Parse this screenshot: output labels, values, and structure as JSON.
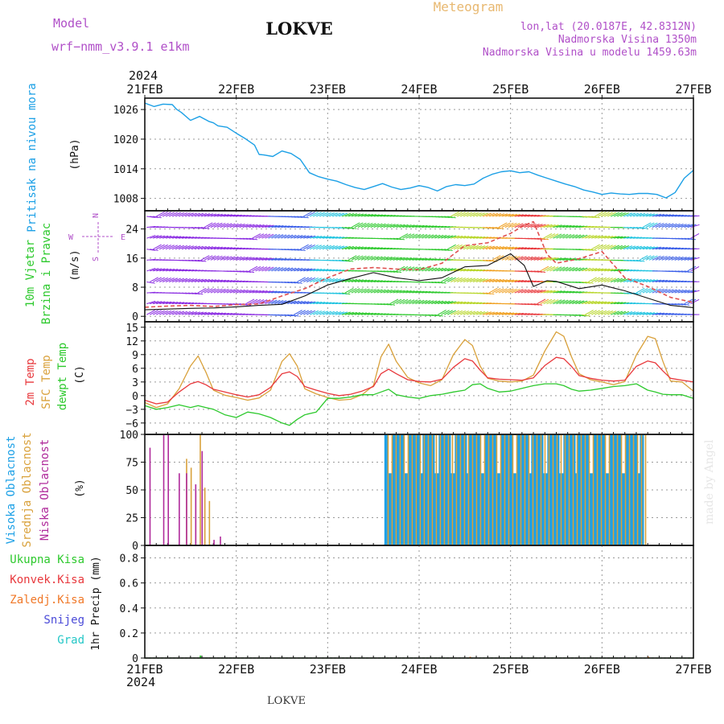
{
  "header": {
    "model_label": "Model",
    "model_name": "wrf−nmm_v3.9.1  e1km",
    "station": "LOKVE",
    "product": "Meteogram",
    "lonlat": "lon,lat (20.0187E, 42.8312N)",
    "elevation": "Nadmorska Visina 1350m",
    "model_elevation": "Nadmorska Visina u modelu 1459.63m",
    "footer_station": "LOKVE",
    "credit": "made by Angel"
  },
  "time_axis": {
    "year_label": "2024",
    "ticks": [
      "21FEB",
      "22FEB",
      "23FEB",
      "24FEB",
      "25FEB",
      "26FEB",
      "27FEB"
    ]
  },
  "colors": {
    "pressure": "#1ca0e6",
    "t2m": "#e8383c",
    "sfc": "#d9a13b",
    "dewpoint": "#2dc92d",
    "high_cloud": "#1ca0e6",
    "mid_cloud": "#d9a13b",
    "low_cloud": "#b02a9b",
    "total_precip": "#2dc92d",
    "conv_precip": "#e8383c",
    "freezing_precip": "#f07828",
    "snow": "#4b4bd8",
    "hail": "#24c7c7"
  },
  "chart_data": [
    {
      "type": "line",
      "panel": "pressure",
      "ylabel_outer": "Pritisak na nivou mora",
      "ylabel_unit": "(hPa)",
      "yticks": [
        "1026",
        "1020",
        "1014",
        "1008"
      ],
      "ylim": [
        1005.5,
        1028.3
      ],
      "x_days": [
        0,
        0.1,
        0.2,
        0.3,
        0.35,
        0.4,
        0.5,
        0.6,
        0.7,
        0.75,
        0.8,
        0.9,
        1.0,
        1.1,
        1.2,
        1.25,
        1.3,
        1.4,
        1.5,
        1.6,
        1.7,
        1.8,
        1.9,
        2.0,
        2.1,
        2.2,
        2.3,
        2.4,
        2.5,
        2.6,
        2.7,
        2.8,
        2.9,
        3.0,
        3.1,
        3.2,
        3.3,
        3.4,
        3.5,
        3.6,
        3.7,
        3.8,
        3.9,
        4.0,
        4.1,
        4.2,
        4.3,
        4.4,
        4.5,
        4.6,
        4.7,
        4.8,
        4.9,
        5.0,
        5.1,
        5.2,
        5.3,
        5.4,
        5.5,
        5.6,
        5.7,
        5.8,
        5.9,
        6.0
      ],
      "series": [
        {
          "values": [
            1027.3,
            1026.6,
            1027.1,
            1027.0,
            1026.0,
            1025.4,
            1023.8,
            1024.6,
            1023.6,
            1023.3,
            1022.7,
            1022.4,
            1021.2,
            1020.1,
            1018.8,
            1016.9,
            1016.8,
            1016.5,
            1017.6,
            1017.1,
            1015.9,
            1013.2,
            1012.4,
            1011.9,
            1011.5,
            1010.8,
            1010.2,
            1009.8,
            1010.4,
            1011.0,
            1010.3,
            1009.8,
            1010.1,
            1010.6,
            1010.2,
            1009.5,
            1010.4,
            1010.8,
            1010.6,
            1010.9,
            1012.1,
            1012.9,
            1013.4,
            1013.6,
            1013.2,
            1013.4,
            1012.7,
            1012.1,
            1011.5,
            1010.9,
            1010.4,
            1009.7,
            1009.3,
            1008.8,
            1009.1,
            1008.9,
            1008.8,
            1009.0,
            1009.0,
            1008.8,
            1008.1,
            1009.2,
            1012.1,
            1013.7
          ]
        }
      ]
    },
    {
      "type": "line",
      "panel": "wind",
      "ylabel_outer": [
        "10m Vjetar",
        "Brzina i Pravac"
      ],
      "ylabel_unit": "(m/s)",
      "yticks": [
        "0",
        "8",
        "16",
        "24"
      ],
      "ylim": [
        -1.5,
        29
      ],
      "compass": {
        "n": "N",
        "w": "W",
        "e": "E",
        "s": "S"
      },
      "x_days": [
        0,
        0.25,
        0.5,
        0.75,
        1.0,
        1.25,
        1.5,
        1.75,
        2.0,
        2.25,
        2.5,
        2.75,
        3.0,
        3.25,
        3.5,
        3.75,
        4.0,
        4.15,
        4.25,
        4.4,
        4.5,
        4.75,
        5.0,
        5.25,
        5.5,
        5.75,
        6.0
      ],
      "series": [
        {
          "name": "speed",
          "values": [
            2.5,
            2.8,
            3.0,
            2.7,
            3.2,
            3.4,
            5.6,
            7.6,
            10.6,
            13.0,
            13.4,
            13.0,
            12.8,
            14.6,
            19.4,
            20.2,
            22.8,
            25.0,
            26.0,
            17.0,
            14.6,
            15.8,
            17.8,
            10.6,
            8.2,
            5.2,
            3.8
          ]
        },
        {
          "name": "gust",
          "values": [
            1.8,
            2.0,
            2.2,
            2.3,
            2.6,
            3.0,
            3.3,
            5.6,
            8.6,
            10.4,
            12.0,
            10.6,
            9.8,
            10.6,
            13.6,
            14.0,
            17.2,
            14.0,
            8.2,
            9.8,
            9.6,
            7.6,
            8.6,
            7.0,
            5.0,
            3.0,
            2.4
          ]
        }
      ]
    },
    {
      "type": "line",
      "panel": "temperature",
      "ylabel_outer": [
        "2m Temp",
        "SFC Temp",
        "dewpt Temp"
      ],
      "ylabel_unit": "(C)",
      "yticks": [
        "15",
        "12",
        "9",
        "6",
        "3",
        "0",
        "−3",
        "−6"
      ],
      "ylim": [
        -8.5,
        16.2
      ],
      "x_days": [
        0,
        0.125,
        0.25,
        0.375,
        0.5,
        0.583,
        0.667,
        0.75,
        0.875,
        1.0,
        1.125,
        1.25,
        1.375,
        1.5,
        1.583,
        1.667,
        1.75,
        1.875,
        2.0,
        2.125,
        2.25,
        2.375,
        2.5,
        2.583,
        2.667,
        2.75,
        2.875,
        3.0,
        3.125,
        3.25,
        3.375,
        3.5,
        3.583,
        3.667,
        3.75,
        3.875,
        4.0,
        4.125,
        4.25,
        4.375,
        4.5,
        4.583,
        4.667,
        4.75,
        4.875,
        5.0,
        5.125,
        5.25,
        5.375,
        5.5,
        5.583,
        5.667,
        5.75,
        5.875,
        6.0
      ],
      "series": [
        {
          "name": "2m Temp",
          "values": [
            -1.0,
            -1.8,
            -1.4,
            0.8,
            2.6,
            3.1,
            2.4,
            1.4,
            0.8,
            0.2,
            -0.3,
            0.2,
            1.8,
            4.8,
            5.2,
            4.2,
            2.0,
            1.2,
            0.5,
            0.0,
            0.3,
            1.0,
            2.0,
            4.8,
            5.8,
            4.8,
            3.5,
            3.1,
            3.0,
            3.6,
            6.2,
            8.1,
            7.6,
            5.6,
            3.9,
            3.6,
            3.5,
            3.4,
            3.9,
            6.6,
            8.4,
            8.1,
            6.4,
            4.4,
            3.8,
            3.4,
            3.2,
            3.4,
            6.4,
            7.6,
            7.2,
            5.4,
            3.8,
            3.4,
            3.0
          ]
        },
        {
          "name": "SFC Temp",
          "values": [
            -1.5,
            -2.6,
            -1.8,
            1.5,
            6.5,
            8.7,
            5.2,
            1.2,
            0.1,
            -0.4,
            -1.0,
            -0.5,
            1.2,
            7.5,
            9.2,
            6.5,
            1.5,
            0.4,
            -0.4,
            -1.0,
            -0.8,
            0.2,
            2.2,
            8.5,
            11.3,
            7.5,
            4.0,
            2.8,
            2.2,
            3.5,
            9.0,
            12.3,
            11.0,
            6.5,
            3.8,
            3.2,
            3.0,
            3.2,
            4.5,
            9.8,
            14.0,
            13.0,
            8.5,
            4.8,
            3.5,
            3.0,
            2.4,
            3.1,
            8.9,
            13.0,
            12.5,
            7.5,
            3.2,
            3.0,
            1.0
          ]
        },
        {
          "name": "dewpt Temp",
          "values": [
            -2.2,
            -3.0,
            -2.6,
            -2.0,
            -2.6,
            -2.2,
            -2.6,
            -3.0,
            -4.2,
            -4.8,
            -3.6,
            -4.0,
            -4.8,
            -6.0,
            -6.5,
            -5.2,
            -4.2,
            -3.6,
            -0.6,
            -0.6,
            -0.3,
            0.2,
            0.2,
            0.8,
            1.4,
            0.2,
            -0.3,
            -0.6,
            0.0,
            0.3,
            0.8,
            1.2,
            2.4,
            2.6,
            1.6,
            0.8,
            1.0,
            1.6,
            2.2,
            2.6,
            2.6,
            2.2,
            1.4,
            1.0,
            1.2,
            1.6,
            2.0,
            2.2,
            2.6,
            1.2,
            0.8,
            0.3,
            0.2,
            0.2,
            -0.6
          ]
        }
      ]
    },
    {
      "type": "bar",
      "panel": "cloud",
      "ylabel_outer": [
        "Visoka Oblacnost",
        "Srednja Oblacnost",
        "Niska Oblacnost"
      ],
      "ylabel_unit": "(%)",
      "yticks": [
        "100",
        "75",
        "50",
        "25",
        "0"
      ],
      "ylim": [
        0,
        100
      ],
      "series": [
        {
          "name": "Niska Oblacnost",
          "x_days": [
            0.05,
            0.2,
            0.25,
            0.37,
            0.45,
            0.55,
            0.62,
            0.75,
            0.82
          ],
          "values": [
            88,
            100,
            100,
            65,
            65,
            55,
            85,
            5,
            8
          ]
        },
        {
          "name": "Srednja Oblacnost",
          "x_days": [
            0.45,
            0.5,
            0.55,
            0.6,
            0.65,
            0.7
          ],
          "values": [
            78,
            70,
            50,
            100,
            52,
            40
          ]
        },
        {
          "name": "Visoka Oblacnost",
          "x_days_range": [
            2.62,
            5.45
          ],
          "values_typical": 100
        }
      ]
    },
    {
      "type": "bar",
      "panel": "precip",
      "ylabel_unit": "1hr Precip (mm)",
      "legend": [
        "Ukupna  Kisa",
        "Konvek.Kisa",
        "Zaledj.Kisa",
        "Snijeg",
        "Grad"
      ],
      "yticks": [
        "0.8",
        "0.6",
        "0.4",
        "0.2",
        "0"
      ],
      "ylim": [
        0,
        0.9
      ],
      "series": [
        {
          "name": "Ukupna  Kisa",
          "x_days": [
            0.6
          ],
          "values": [
            0.02
          ]
        },
        {
          "name": "Zaledj.Kisa",
          "x_days": [
            3.55,
            5.5
          ],
          "values": [
            0.01,
            0.01
          ]
        }
      ]
    }
  ]
}
